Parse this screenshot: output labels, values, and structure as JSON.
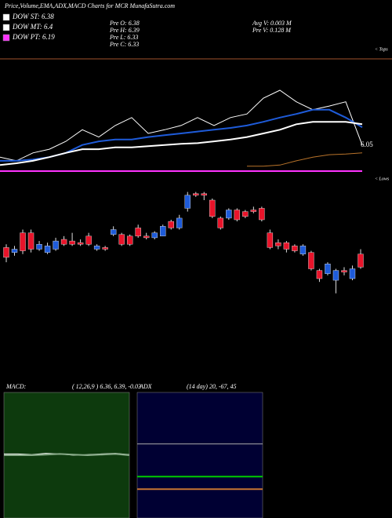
{
  "chart_data": [
    {
      "type": "line",
      "title": "Price,Volume,EMA,ADX,MACD Charts for MCR MunafaSutra.com",
      "info": [
        "Pre O: 6.38",
        "Pre H: 6.39",
        "Pre L: 6.33",
        "Pre C: 6.33",
        "Avg V: 0.003 M",
        "Pre V: 0.128 M"
      ],
      "annotations": [
        "6.05",
        "< Tops",
        "< Lows"
      ],
      "ylim": [
        5.5,
        7.5
      ],
      "series": [
        {
          "name": "DOW ST: 6.38",
          "color": "#ffffff",
          "values": [
            5.82,
            5.76,
            5.89,
            5.95,
            6.08,
            6.27,
            6.15,
            6.34,
            6.47,
            6.21,
            6.27,
            6.34,
            6.47,
            6.34,
            6.47,
            6.53,
            6.79,
            6.92,
            6.73,
            6.6,
            6.66,
            6.73,
            6.02
          ]
        },
        {
          "color": "#1e5bd9",
          "values": [
            5.76,
            5.76,
            5.78,
            5.82,
            5.89,
            6.02,
            6.08,
            6.11,
            6.11,
            6.15,
            6.18,
            6.21,
            6.24,
            6.27,
            6.3,
            6.34,
            6.4,
            6.47,
            6.53,
            6.6,
            6.6,
            6.47,
            6.31
          ]
        },
        {
          "name": "DOW MT: 6.4",
          "color": "#ffffff",
          "values": [
            5.69,
            5.72,
            5.76,
            5.82,
            5.89,
            5.95,
            5.95,
            5.98,
            5.98,
            6.0,
            6.02,
            6.04,
            6.05,
            6.08,
            6.11,
            6.15,
            6.21,
            6.27,
            6.36,
            6.4,
            6.4,
            6.4,
            6.36
          ]
        },
        {
          "color": "#b8732a",
          "values": [
            null,
            null,
            null,
            null,
            null,
            null,
            null,
            null,
            null,
            null,
            null,
            null,
            null,
            null,
            null,
            5.67,
            5.67,
            5.69,
            5.76,
            5.82,
            5.86,
            5.87,
            5.89
          ]
        },
        {
          "name": "DOW PT: 6.19",
          "color": "#ff33ff",
          "values": [
            5.59,
            5.59,
            5.59,
            5.59,
            5.59,
            5.59,
            5.59,
            5.59,
            5.59,
            5.59,
            5.59,
            5.59,
            5.59,
            5.59,
            5.59,
            5.59,
            5.59,
            5.59,
            5.59,
            5.59,
            5.59,
            5.59,
            5.59
          ]
        }
      ]
    },
    {
      "type": "candlestick",
      "ylim": [
        5.8,
        7.0
      ],
      "up_color": "#1e5bd9",
      "down_color": "#e8142a",
      "open": [
        6.59,
        6.56,
        6.68,
        6.68,
        6.58,
        6.56,
        6.58,
        6.64,
        6.63,
        6.62,
        6.66,
        6.58,
        6.59,
        6.67,
        6.67,
        6.66,
        6.71,
        6.66,
        6.65,
        6.66,
        6.75,
        6.71,
        6.83,
        6.92,
        6.92,
        6.88,
        6.77,
        6.77,
        6.82,
        6.81,
        6.82,
        6.83,
        6.68,
        6.62,
        6.62,
        6.6,
        6.55,
        6.56,
        6.45,
        6.43,
        6.39,
        6.45,
        6.4,
        6.55
      ],
      "high": [
        6.61,
        6.6,
        6.7,
        6.7,
        6.63,
        6.62,
        6.65,
        6.66,
        6.68,
        6.64,
        6.68,
        6.61,
        6.6,
        6.72,
        6.68,
        6.67,
        6.73,
        6.68,
        6.69,
        6.73,
        6.76,
        6.79,
        6.93,
        6.93,
        6.93,
        6.89,
        6.78,
        6.83,
        6.83,
        6.82,
        6.84,
        6.84,
        6.7,
        6.64,
        6.63,
        6.61,
        6.61,
        6.57,
        6.46,
        6.5,
        6.46,
        6.47,
        6.48,
        6.58
      ],
      "low": [
        6.5,
        6.54,
        6.55,
        6.56,
        6.57,
        6.55,
        6.57,
        6.6,
        6.6,
        6.6,
        6.6,
        6.57,
        6.57,
        6.66,
        6.6,
        6.6,
        6.65,
        6.64,
        6.64,
        6.66,
        6.7,
        6.7,
        6.81,
        6.9,
        6.88,
        6.77,
        6.7,
        6.76,
        6.75,
        6.77,
        6.8,
        6.75,
        6.58,
        6.58,
        6.56,
        6.56,
        6.54,
        6.45,
        6.38,
        6.42,
        6.31,
        6.42,
        6.39,
        6.46
      ],
      "close": [
        6.53,
        6.58,
        6.57,
        6.58,
        6.61,
        6.6,
        6.63,
        6.61,
        6.61,
        6.61,
        6.61,
        6.6,
        6.58,
        6.7,
        6.61,
        6.61,
        6.66,
        6.65,
        6.68,
        6.72,
        6.71,
        6.77,
        6.91,
        6.91,
        6.91,
        6.78,
        6.71,
        6.82,
        6.76,
        6.78,
        6.81,
        6.76,
        6.59,
        6.6,
        6.58,
        6.57,
        6.6,
        6.46,
        6.4,
        6.49,
        6.45,
        6.44,
        6.46,
        6.47
      ]
    },
    {
      "type": "line",
      "title": "MACD:",
      "subtitle": "( 12,26,9 ) 6.36, 6.39, -0.03",
      "background": "#0d3a0d",
      "ylim": [
        -1,
        1
      ],
      "series": [
        {
          "color": "#ffffff",
          "values": [
            0.02,
            0.02,
            0.01,
            0.03,
            0.02,
            0.0,
            0.01,
            0.02,
            0.03,
            0.01
          ]
        },
        {
          "color": "#88aa88",
          "values": [
            0.0,
            0.0,
            0.0,
            0.01,
            0.02,
            0.01,
            0.0,
            0.01,
            0.02,
            0.0
          ]
        }
      ]
    },
    {
      "type": "line",
      "title": "ADX",
      "subtitle": "(14 day) 20, -67, 45",
      "background": "#000033",
      "ylim": [
        0,
        100
      ],
      "series": [
        {
          "color": "#aaaaaa",
          "values": [
            59,
            59
          ]
        },
        {
          "color": "#00cc00",
          "values": [
            33,
            33
          ]
        },
        {
          "color": "#c87533",
          "values": [
            23,
            23
          ]
        }
      ]
    }
  ]
}
